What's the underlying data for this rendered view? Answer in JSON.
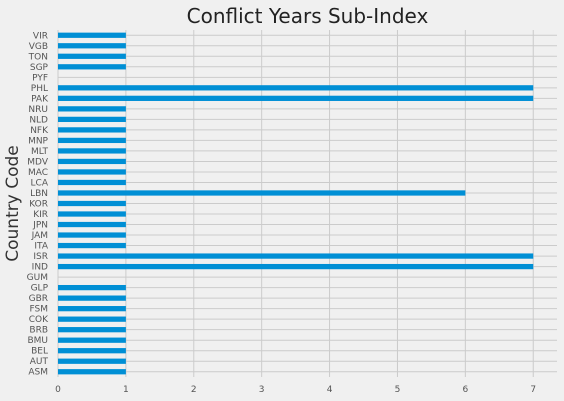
{
  "chart_data": {
    "type": "bar",
    "orientation": "horizontal",
    "title": "Conflict Years Sub-Index",
    "xlabel": "",
    "ylabel": "Country Code",
    "xlim": [
      0,
      7.35
    ],
    "xticks": [
      "0",
      "1",
      "2",
      "3",
      "4",
      "5",
      "6",
      "7"
    ],
    "grid": true,
    "bar_color": "#008fd5",
    "background_color": "#f0f0f0",
    "categories": [
      "ASM",
      "AUT",
      "BEL",
      "BMU",
      "BRB",
      "COK",
      "FSM",
      "GBR",
      "GLP",
      "GUM",
      "IND",
      "ISR",
      "ITA",
      "JAM",
      "JPN",
      "KIR",
      "KOR",
      "LBN",
      "LCA",
      "MAC",
      "MDV",
      "MLT",
      "MNP",
      "NFK",
      "NLD",
      "NRU",
      "PAK",
      "PHL",
      "PYF",
      "SGP",
      "TON",
      "VGB",
      "VIR"
    ],
    "values": [
      1,
      1,
      1,
      1,
      1,
      1,
      1,
      1,
      1,
      0,
      7,
      7,
      1,
      1,
      1,
      1,
      1,
      6,
      1,
      1,
      1,
      1,
      1,
      1,
      1,
      1,
      7,
      7,
      0,
      1,
      1,
      1,
      1
    ]
  }
}
